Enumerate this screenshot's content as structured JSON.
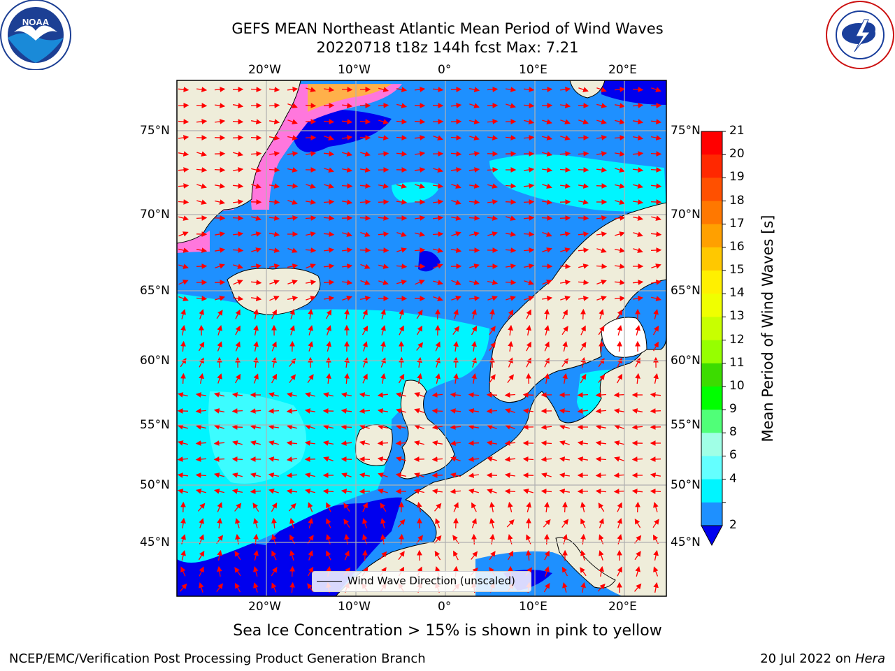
{
  "header": {
    "title_line1": "GEFS MEAN Northeast Atlantic Mean Period of Wind Waves",
    "title_line2": "20220718 t18z 144h fcst   Max: 7.21"
  },
  "logos": {
    "left": {
      "name": "noaa-logo",
      "text": "NOAA",
      "ring_text": "NATIONAL OCEANIC AND ATMOSPHERIC ADMINISTRATION · U.S. DEPARTMENT OF COMMERCE"
    },
    "right": {
      "name": "nws-logo",
      "ring_text": "NATIONAL WEATHER SERVICE"
    }
  },
  "map": {
    "lon_labels": [
      "20°W",
      "10°W",
      "0°",
      "10°E",
      "20°E"
    ],
    "lat_labels": [
      "75°N",
      "70°N",
      "65°N",
      "60°N",
      "55°N",
      "50°N",
      "45°N"
    ],
    "legend_label": "Wind Wave Direction (unscaled)",
    "colors": {
      "land": "#efedda",
      "level_2_4": "#1e90ff",
      "level_4_6": "#00f5ff",
      "level_6_8": "#3cfcff",
      "level_lt2": "#0000ee",
      "ice_pink": "#ff77dd",
      "ice_orange": "#ffb04a",
      "arrows": "#ff0000",
      "grid": "#b0b0b0"
    }
  },
  "colorbar": {
    "label": "Mean Period of Wind Waves [s]",
    "ticks": [
      "21",
      "20",
      "19",
      "18",
      "17",
      "16",
      "15",
      "14",
      "13",
      "12",
      "11",
      "10",
      "9",
      "8",
      "6",
      "4",
      "2"
    ],
    "colors": [
      "#ff0000",
      "#ff2800",
      "#ff5000",
      "#ff7800",
      "#ffa000",
      "#ffc800",
      "#fff000",
      "#f0ff00",
      "#c8ff00",
      "#96ff00",
      "#3cdc00",
      "#00ff00",
      "#50ff78",
      "#a0ffe6",
      "#64ffff",
      "#00f5ff",
      "#1e90ff"
    ],
    "extend_color": "#0000ee"
  },
  "footer": {
    "note": "Sea Ice Concentration > 15% is shown in pink to yellow",
    "producer": "NCEP/EMC/Verification Post Processing Product Generation Branch",
    "date": "20 Jul 2022 on ",
    "machine": "Hera"
  }
}
